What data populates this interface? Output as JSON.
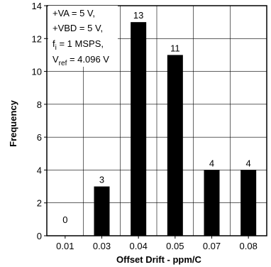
{
  "chart_data": {
    "type": "bar",
    "categories": [
      "0.01",
      "0.03",
      "0.04",
      "0.05",
      "0.07",
      "0.08"
    ],
    "values": [
      0,
      3,
      13,
      11,
      4,
      4
    ],
    "data_labels": [
      "0",
      "3",
      "13",
      "11",
      "4",
      "4"
    ],
    "xlabel": "Offset Drift - ppm/C",
    "ylabel": "Frequency",
    "ylim": [
      0,
      14
    ],
    "yticks": [
      "0",
      "2",
      "4",
      "6",
      "8",
      "10",
      "12",
      "14"
    ],
    "grid": true,
    "bar_color": "#000000",
    "annotation": {
      "line1": "+VA = 5 V,",
      "line2": "+VBD = 5 V,",
      "line3_main": "f",
      "line3_sub": "i",
      "line3_rest": " = 1 MSPS,",
      "line4_main": "V",
      "line4_sub": "ref",
      "line4_rest": " = 4.096 V"
    }
  }
}
